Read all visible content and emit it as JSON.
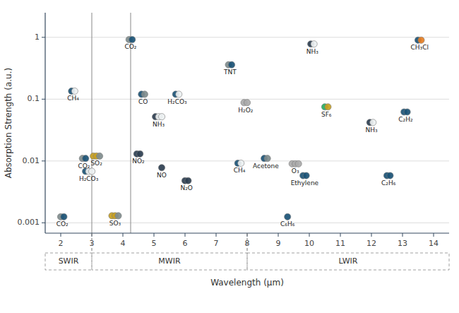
{
  "chart_data": {
    "type": "scatter",
    "xlabel": "Wavelength (μm)",
    "ylabel": "Absorption Strength (a.u.)",
    "log": "y",
    "grid": "y",
    "xlim": [
      1.5,
      14.5
    ],
    "ylim": [
      0.00068,
      2.5
    ],
    "xticks": [
      2,
      3,
      4,
      5,
      6,
      7,
      8,
      9,
      10,
      11,
      12,
      13,
      14
    ],
    "yticks": [
      0.001,
      0.01,
      0.1,
      1
    ],
    "labels": [
      "CO₂",
      "CH₄",
      "CO₂",
      "H₂CO₃",
      "SO₂",
      "SO₃",
      "CO₂",
      "CO",
      "NH₃",
      "H₂CO₃",
      "NO₂",
      "NO",
      "N₂O",
      "TNT",
      "CH₄",
      "H₂O₂",
      "Acetone",
      "C₆H₆",
      "O₃",
      "Ethylene",
      "NH₃",
      "SF₆",
      "NH₃",
      "C₂H₂",
      "C₂H₆",
      "CH₃Cl"
    ],
    "x": [
      2.05,
      2.4,
      2.75,
      2.9,
      3.15,
      3.75,
      4.25,
      4.65,
      5.15,
      5.75,
      4.5,
      5.25,
      6.05,
      7.45,
      7.75,
      7.95,
      8.6,
      9.3,
      9.55,
      9.85,
      10.1,
      10.55,
      12.0,
      13.1,
      12.55,
      13.55
    ],
    "values": [
      0.00125,
      0.135,
      0.011,
      0.0068,
      0.012,
      0.0013,
      0.92,
      0.12,
      0.052,
      0.12,
      0.013,
      0.0078,
      0.0048,
      0.36,
      0.0092,
      0.088,
      0.011,
      0.00125,
      0.009,
      0.0058,
      0.78,
      0.075,
      0.042,
      0.062,
      0.0058,
      0.9
    ],
    "colors": [
      [
        "#7f8c8d",
        "#1a5276"
      ],
      [
        "#1a5276",
        "#ecf0f1"
      ],
      [
        "#7f8c8d",
        "#1a5276"
      ],
      [
        "#1a5276",
        "#ecf0f1",
        "#ecf0f1"
      ],
      [
        "#c8a020",
        "#c8a020",
        "#7f8c8d"
      ],
      [
        "#c8a020",
        "#c8a020",
        "#7f8c8d"
      ],
      [
        "#7f8c8d",
        "#1a5276"
      ],
      [
        "#1a5276",
        "#7f8c8d"
      ],
      [
        "#2c3e50",
        "#ecf0f1",
        "#ecf0f1"
      ],
      [
        "#1a5276",
        "#ecf0f1"
      ],
      [
        "#2c3e50",
        "#2c3e50"
      ],
      [
        "#2c3e50"
      ],
      [
        "#2c3e50",
        "#2c3e50"
      ],
      [
        "#7f8c8d",
        "#1a5276"
      ],
      [
        "#1a5276",
        "#ecf0f1"
      ],
      [
        "#aaaaaa",
        "#aaaaaa"
      ],
      [
        "#1a5276",
        "#7f8c8d"
      ],
      [
        "#1a5276"
      ],
      [
        "#aaaaaa",
        "#aaaaaa",
        "#aaaaaa"
      ],
      [
        "#1a5276",
        "#1a5276"
      ],
      [
        "#2c3e50",
        "#ecf0f1"
      ],
      [
        "#27ae60",
        "#c8a020"
      ],
      [
        "#2c3e50",
        "#ecf0f1"
      ],
      [
        "#1a5276",
        "#1a5276"
      ],
      [
        "#1a5276",
        "#1a5276"
      ],
      [
        "#1a5276",
        "#e67e22"
      ]
    ],
    "vlines": [
      3.0,
      4.25
    ],
    "regions": [
      {
        "label": "SWIR",
        "x_start": 1.5,
        "x_end": 3.0
      },
      {
        "label": "MWIR",
        "x_start": 3.0,
        "x_end": 8.0
      },
      {
        "label": "LWIR",
        "x_start": 8.0,
        "x_end": 14.5
      }
    ]
  }
}
